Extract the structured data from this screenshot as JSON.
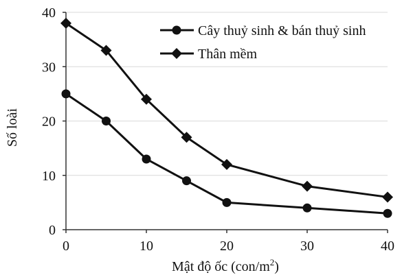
{
  "chart_data": {
    "type": "line",
    "xlabel": "Mật độ ốc (con/m",
    "xlabel_superscript": "2",
    "xlabel_suffix": ")",
    "ylabel": "Số loài",
    "xlim": [
      0,
      40
    ],
    "ylim": [
      0,
      40
    ],
    "x_ticks": [
      0,
      10,
      20,
      30,
      40
    ],
    "y_ticks": [
      0,
      10,
      20,
      30,
      40
    ],
    "grid": "horizontal",
    "legend_position": "top-right",
    "series": [
      {
        "name": "Cây thuỷ sinh & bán thuỷ sinh",
        "marker": "circle",
        "x": [
          0,
          5,
          10,
          15,
          20,
          30,
          40
        ],
        "values": [
          25,
          20,
          13,
          9,
          5,
          4,
          3
        ]
      },
      {
        "name": "Thân mềm",
        "marker": "diamond",
        "x": [
          0,
          5,
          10,
          15,
          20,
          30,
          40
        ],
        "values": [
          38,
          33,
          24,
          17,
          12,
          8,
          6
        ]
      }
    ],
    "colors": {
      "line": "#111111",
      "grid": "#d9d9d9",
      "axis": "#333333"
    }
  }
}
